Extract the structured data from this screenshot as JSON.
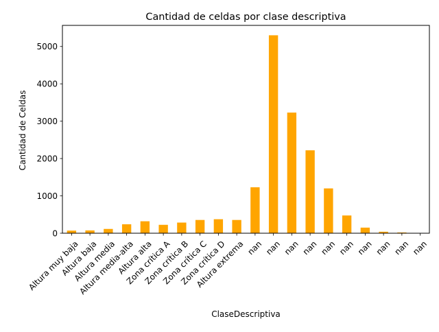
{
  "chart_data": {
    "type": "bar",
    "title": "Cantidad de celdas por clase descriptiva",
    "xlabel": "ClaseDescriptiva",
    "ylabel": "Cantidad de Celdas",
    "categories": [
      "Altura muy baja",
      "Altura baja",
      "Altura media",
      "Altura media-alta",
      "Altura alta",
      "Zona crítica A",
      "Zona crítica B",
      "Zona crítica C",
      "Zona crítica D",
      "Altura extrema",
      "nan",
      "nan",
      "nan",
      "nan",
      "nan",
      "nan",
      "nan",
      "nan",
      "nan",
      "nan"
    ],
    "values": [
      70,
      75,
      115,
      240,
      320,
      225,
      285,
      355,
      375,
      355,
      1230,
      5300,
      3230,
      2220,
      1200,
      475,
      150,
      40,
      20,
      3
    ],
    "ylim": [
      0,
      5565
    ],
    "yticks": [
      0,
      1000,
      2000,
      3000,
      4000,
      5000
    ],
    "bar_color": "#ffa500",
    "grid": false,
    "legend": false
  }
}
